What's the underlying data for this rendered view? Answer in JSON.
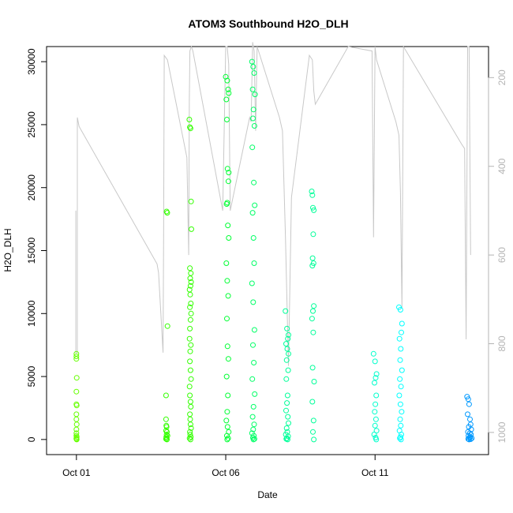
{
  "chart_data": {
    "type": "scatter",
    "title": "ATOM3 Southbound H2O_DLH",
    "xlabel": "Date",
    "ylabel": "H2O_DLH",
    "xlim": [
      0.0,
      14.8
    ],
    "ylim": [
      -1200,
      31200
    ],
    "y_ticks": [
      0,
      5000,
      10000,
      15000,
      20000,
      25000,
      30000
    ],
    "x_ticks": [
      {
        "value": 1,
        "label": "Oct 01"
      },
      {
        "value": 6,
        "label": "Oct 06"
      },
      {
        "value": 11,
        "label": "Oct 11"
      }
    ],
    "right_axis": {
      "label": "",
      "ticks": [
        200,
        400,
        600,
        800,
        1000
      ],
      "range_top_to_bottom": [
        130,
        1050
      ],
      "color": "#b4b4b4",
      "reversed": true
    },
    "grid": false,
    "legend": "none",
    "colors": {
      "flight_1": "#66ff00",
      "flight_2": "#33ff00",
      "flight_3": "#00ff33",
      "flight_4": "#00ff66",
      "flight_5": "#00ff99",
      "flight_6": "#00ffcc",
      "flight_7": "#00ffff",
      "flight_8": "#00ccff",
      "flight_9": "#0099ff",
      "pressure_line": "#c8c8c8"
    },
    "series": [
      {
        "color_key": "flight_1",
        "x": [
          1.0,
          1.0,
          1.0,
          1.01,
          1.0,
          1.0,
          1.01,
          1.0,
          1.0,
          1.01,
          1.0,
          1.0,
          1.0,
          1.01,
          1.0,
          1.0,
          1.01
        ],
        "y": [
          6800,
          6600,
          6400,
          4900,
          3800,
          2800,
          2700,
          2000,
          1600,
          1200,
          800,
          500,
          300,
          200,
          100,
          50,
          0
        ]
      },
      {
        "color_key": "flight_2",
        "x": [
          4.02,
          4.04,
          4.05,
          4.0,
          4.0,
          4.01,
          4.02,
          4.0,
          4.03,
          4.02,
          4.05,
          4.01,
          4.02,
          4.0,
          4.03
        ],
        "y": [
          18100,
          18000,
          9000,
          3500,
          1600,
          1100,
          1000,
          700,
          600,
          400,
          300,
          200,
          100,
          50,
          0
        ],
        "x2": [
          4.78,
          4.8,
          4.82,
          4.84,
          4.85,
          4.8,
          4.83,
          4.81,
          4.84,
          4.82,
          4.79,
          4.81,
          4.83,
          4.8,
          4.84,
          4.82,
          4.8,
          4.79,
          4.83,
          4.81,
          4.8,
          4.82,
          4.84,
          4.79,
          4.8,
          4.82,
          4.83,
          4.8,
          4.81,
          4.82,
          4.84,
          4.8,
          4.81,
          4.83,
          4.79,
          4.82
        ],
        "y2": [
          25400,
          24800,
          24700,
          18900,
          16700,
          13600,
          13200,
          12800,
          12500,
          12200,
          11900,
          11500,
          10800,
          10500,
          10000,
          9500,
          8800,
          8000,
          7500,
          7000,
          6200,
          5500,
          4800,
          4200,
          3500,
          3000,
          2600,
          2000,
          1600,
          1200,
          900,
          600,
          400,
          200,
          100,
          0
        ]
      },
      {
        "color_key": "flight_3",
        "x": [
          6.0,
          6.05,
          6.08,
          6.1,
          6.02,
          6.04,
          6.06,
          6.1,
          6.09,
          6.05,
          6.03,
          6.07,
          6.1,
          6.02,
          6.05,
          6.08,
          6.04,
          6.06,
          6.09,
          6.03,
          6.07,
          6.05,
          6.02,
          6.06,
          6.1,
          6.04,
          6.08,
          6.05
        ],
        "y": [
          28800,
          28500,
          27800,
          27500,
          27000,
          25400,
          21500,
          21200,
          20500,
          18800,
          18700,
          17000,
          16000,
          14000,
          12600,
          11400,
          9600,
          7400,
          6400,
          5000,
          3500,
          2200,
          1500,
          1000,
          600,
          300,
          100,
          0
        ]
      },
      {
        "color_key": "flight_4",
        "x": [
          6.88,
          6.92,
          6.95,
          6.9,
          6.98,
          6.93,
          6.91,
          6.96,
          6.89,
          6.94,
          6.97,
          6.9,
          6.93,
          6.95,
          6.88,
          6.92,
          6.96,
          6.91,
          6.94,
          6.89,
          6.97,
          6.93,
          6.9,
          6.95,
          6.92,
          6.88,
          6.94,
          6.91,
          6.96,
          6.93
        ],
        "y": [
          30000,
          29600,
          29100,
          27800,
          27400,
          26200,
          25500,
          24900,
          23200,
          20400,
          18600,
          18000,
          16000,
          14000,
          12400,
          10900,
          8700,
          7500,
          6100,
          4800,
          3600,
          2600,
          1800,
          1200,
          800,
          500,
          300,
          150,
          50,
          0
        ]
      },
      {
        "color_key": "flight_5",
        "x": [
          8.0,
          8.05,
          8.1,
          8.08,
          8.02,
          8.06,
          8.1,
          8.04,
          8.09,
          8.03,
          8.07,
          8.05,
          8.02,
          8.08,
          8.1,
          8.04,
          8.06,
          8.01,
          8.09,
          8.05,
          8.03,
          8.07
        ],
        "y": [
          10200,
          8800,
          8300,
          8000,
          7600,
          7200,
          6800,
          6300,
          5500,
          4800,
          3500,
          2900,
          2300,
          1800,
          1300,
          900,
          600,
          400,
          250,
          100,
          50,
          0
        ]
      },
      {
        "color_key": "flight_5",
        "x": [
          8.88,
          8.9,
          8.92,
          8.95,
          8.93,
          8.91,
          8.94,
          8.9,
          8.95,
          8.92,
          8.89,
          8.93,
          8.91,
          8.96,
          8.9,
          8.94,
          8.92,
          8.95
        ],
        "y": [
          19700,
          19400,
          18400,
          18200,
          16300,
          14400,
          14000,
          13800,
          10600,
          10200,
          9600,
          8500,
          5700,
          4600,
          3000,
          1500,
          600,
          0
        ]
      },
      {
        "color_key": "flight_6",
        "x": [
          10.95,
          11.0,
          11.05,
          11.02,
          10.98,
          11.04,
          11.01,
          10.99,
          11.03,
          11.0,
          11.05,
          10.97,
          11.02,
          11.04
        ],
        "y": [
          6800,
          6200,
          5200,
          4900,
          4500,
          3500,
          2800,
          2200,
          1600,
          1100,
          700,
          400,
          150,
          0
        ]
      },
      {
        "color_key": "flight_7",
        "x": [
          11.8,
          11.85,
          11.9,
          11.88,
          11.82,
          11.86,
          11.84,
          11.9,
          11.83,
          11.87,
          11.81,
          11.85,
          11.89,
          11.84,
          11.86,
          11.82,
          11.88,
          11.85,
          11.83,
          11.87
        ],
        "y": [
          10500,
          10300,
          9200,
          8500,
          8000,
          7200,
          6300,
          5500,
          4800,
          4200,
          3500,
          2800,
          2200,
          1600,
          1100,
          700,
          400,
          200,
          100,
          0
        ]
      },
      {
        "color_key": "flight_9",
        "x": [
          14.08,
          14.12,
          14.15,
          14.1,
          14.18,
          14.2,
          14.14,
          14.22,
          14.11,
          14.17,
          14.21,
          14.13,
          14.19,
          14.16,
          14.24,
          14.12,
          14.2,
          14.15
        ],
        "y": [
          3400,
          3200,
          2800,
          2000,
          1600,
          1200,
          1000,
          800,
          600,
          500,
          400,
          300,
          200,
          150,
          100,
          50,
          20,
          0
        ]
      }
    ],
    "pressure_line": {
      "axis": "right",
      "x": [
        0.98,
        0.98,
        1.03,
        1.03,
        1.09,
        3.7,
        3.75,
        3.9,
        3.92,
        3.94,
        4.05,
        4.7,
        4.76,
        4.78,
        4.8,
        4.85,
        4.9,
        5.9,
        6.0,
        6.05,
        6.1,
        6.15,
        6.8,
        6.85,
        6.9,
        6.95,
        7.0,
        7.05,
        7.8,
        7.9,
        8.0,
        8.1,
        8.2,
        8.8,
        8.9,
        8.95,
        9.0,
        10.1,
        10.9,
        10.95,
        11.0,
        11.05,
        11.7,
        11.8,
        11.85,
        11.9,
        11.95,
        13.9,
        14.0,
        14.05,
        14.1,
        14.15,
        14.2
      ],
      "y": [
        500,
        820,
        820,
        290,
        310,
        620,
        640,
        820,
        560,
        150,
        160,
        380,
        600,
        250,
        140,
        130,
        140,
        500,
        130,
        130,
        170,
        500,
        290,
        300,
        120,
        140,
        320,
        130,
        290,
        320,
        560,
        850,
        470,
        150,
        160,
        230,
        260,
        130,
        140,
        560,
        130,
        160,
        300,
        330,
        460,
        720,
        130,
        350,
        360,
        790,
        130,
        130,
        600
      ]
    }
  }
}
